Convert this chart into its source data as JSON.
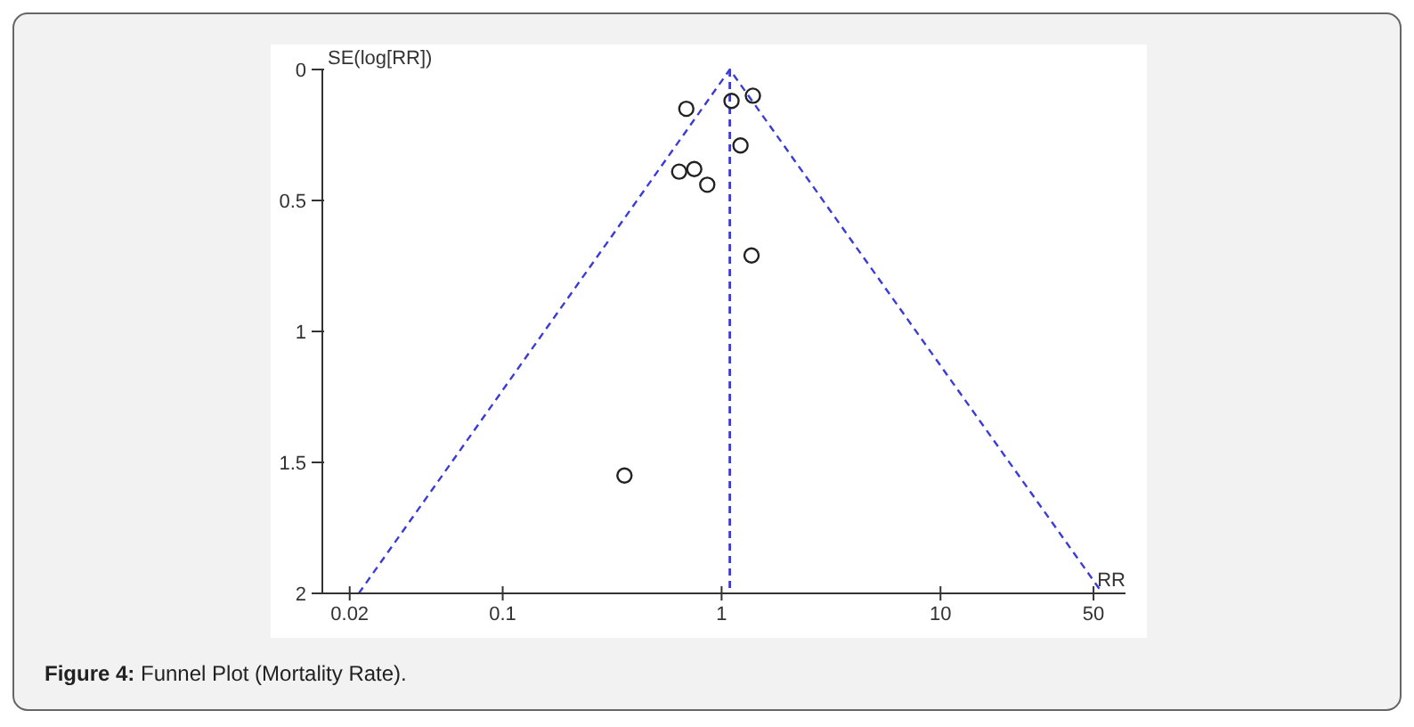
{
  "chart_data": {
    "type": "scatter",
    "xlabel": "RR",
    "ylabel": "SE(log[RR])",
    "annotations": [
      "Figure 4: Funnel Plot (Mortality Rate)."
    ],
    "log": "x",
    "xlim": [
      0.015,
      70
    ],
    "ylim": [
      2,
      0
    ],
    "xticks": [
      0.02,
      0.1,
      1,
      10,
      50
    ],
    "yticks": [
      0,
      0.5,
      1,
      1.5,
      2
    ],
    "marker": "circle",
    "series": [
      {
        "color": "#222222",
        "x": [
          0.69,
          1.11,
          1.39,
          1.22,
          0.64,
          0.75,
          0.86,
          1.37,
          0.36
        ],
        "values": [
          0.15,
          0.12,
          0.1,
          0.29,
          0.39,
          0.38,
          0.44,
          0.71,
          1.55
        ]
      },
      {
        "type": "line",
        "color": "#3b3bd9",
        "line_style": "dashed",
        "marker": "none",
        "x": [
          0.022,
          1.09,
          55
        ],
        "values": [
          2,
          0,
          2
        ]
      }
    ],
    "ref_lines": [
      {
        "axis": "x",
        "value": 1.09,
        "color": "#3b3bd9",
        "line_style": "dashed"
      }
    ]
  }
}
